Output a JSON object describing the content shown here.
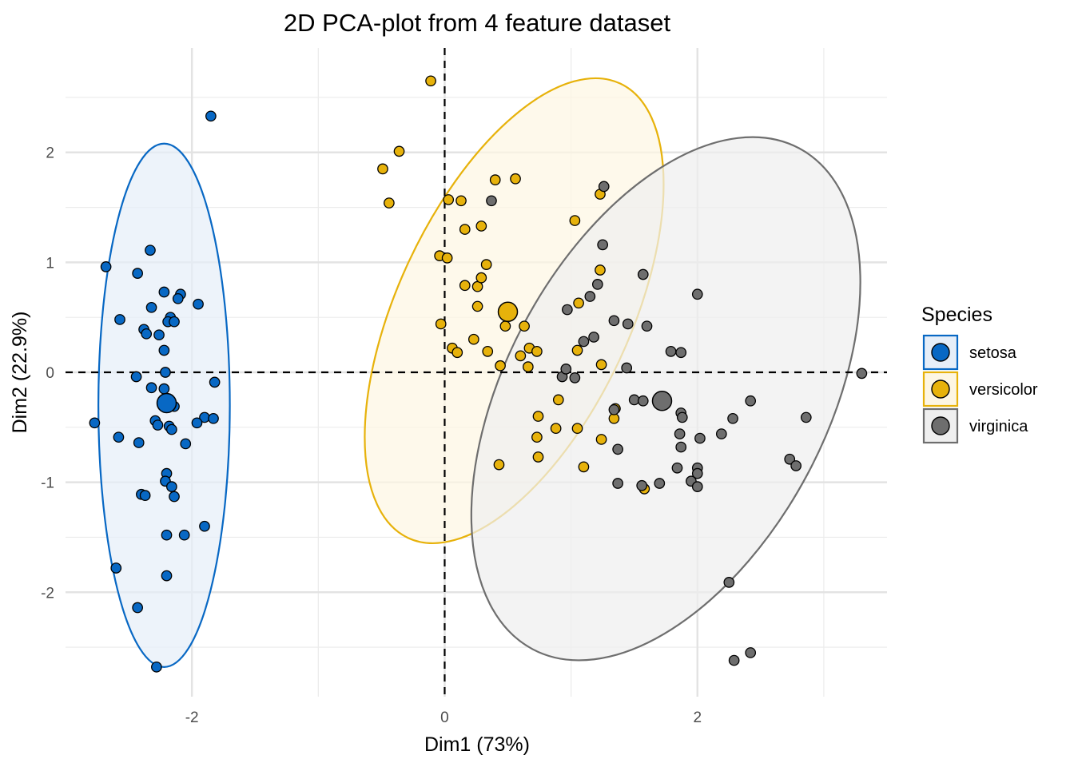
{
  "chart_data": {
    "type": "scatter",
    "title": "2D PCA-plot from 4 feature dataset",
    "xlabel": "Dim1 (73%)",
    "ylabel": "Dim2 (22.9%)",
    "xlim": [
      -3.0,
      3.5
    ],
    "ylim": [
      -2.95,
      2.95
    ],
    "x_ticks": [
      -2,
      0,
      2
    ],
    "x_tick_labels": [
      "-2",
      "0",
      "2"
    ],
    "y_ticks": [
      -2,
      -1,
      0,
      1,
      2
    ],
    "y_tick_labels": [
      "-2",
      "-1",
      "0",
      "1",
      "2"
    ],
    "grid": true,
    "reference_lines": {
      "x": 0,
      "y": 0,
      "style": "dashed"
    },
    "legend": {
      "title": "Species",
      "placement": "right"
    },
    "series": [
      {
        "name": "setosa",
        "color": "#0868c4",
        "fill": "#e6eef8",
        "centroid": [
          -2.2,
          -0.28
        ],
        "ellipse": {
          "center": [
            -2.22,
            -0.3
          ],
          "rx": 0.52,
          "ry": 2.38,
          "angle_deg": 0
        },
        "points": [
          [
            -1.85,
            2.33
          ],
          [
            -2.68,
            0.96
          ],
          [
            -2.33,
            1.11
          ],
          [
            -2.43,
            0.9
          ],
          [
            -2.22,
            0.73
          ],
          [
            -2.09,
            0.71
          ],
          [
            -2.11,
            0.67
          ],
          [
            -1.95,
            0.62
          ],
          [
            -2.32,
            0.59
          ],
          [
            -2.57,
            0.48
          ],
          [
            -2.17,
            0.5
          ],
          [
            -2.19,
            0.46
          ],
          [
            -2.14,
            0.46
          ],
          [
            -2.38,
            0.39
          ],
          [
            -2.36,
            0.35
          ],
          [
            -2.26,
            0.34
          ],
          [
            -2.22,
            0.2
          ],
          [
            -2.21,
            0.0
          ],
          [
            -2.44,
            -0.04
          ],
          [
            -1.82,
            -0.09
          ],
          [
            -2.32,
            -0.14
          ],
          [
            -2.22,
            -0.15
          ],
          [
            -2.14,
            -0.31
          ],
          [
            -2.29,
            -0.44
          ],
          [
            -2.27,
            -0.48
          ],
          [
            -2.18,
            -0.49
          ],
          [
            -2.16,
            -0.52
          ],
          [
            -1.9,
            -0.41
          ],
          [
            -1.83,
            -0.42
          ],
          [
            -1.96,
            -0.46
          ],
          [
            -2.77,
            -0.46
          ],
          [
            -2.58,
            -0.59
          ],
          [
            -2.42,
            -0.64
          ],
          [
            -2.05,
            -0.65
          ],
          [
            -2.2,
            -0.92
          ],
          [
            -2.21,
            -0.99
          ],
          [
            -2.16,
            -1.04
          ],
          [
            -2.14,
            -1.13
          ],
          [
            -2.4,
            -1.11
          ],
          [
            -2.37,
            -1.12
          ],
          [
            -1.9,
            -1.4
          ],
          [
            -2.2,
            -1.48
          ],
          [
            -2.06,
            -1.48
          ],
          [
            -2.6,
            -1.78
          ],
          [
            -2.2,
            -1.85
          ],
          [
            -2.43,
            -2.14
          ],
          [
            -2.28,
            -2.68
          ]
        ]
      },
      {
        "name": "versicolor",
        "color": "#e7b20b",
        "fill": "#fdf6e3",
        "centroid": [
          0.5,
          0.55
        ],
        "ellipse": {
          "center": [
            0.55,
            0.56
          ],
          "rx": 0.92,
          "ry": 2.28,
          "angle_deg": 25
        },
        "points": [
          [
            -0.11,
            2.65
          ],
          [
            -0.36,
            2.01
          ],
          [
            -0.49,
            1.85
          ],
          [
            -0.44,
            1.54
          ],
          [
            0.03,
            1.57
          ],
          [
            0.13,
            1.56
          ],
          [
            0.4,
            1.75
          ],
          [
            0.56,
            1.76
          ],
          [
            0.16,
            1.3
          ],
          [
            0.29,
            1.33
          ],
          [
            1.03,
            1.38
          ],
          [
            1.23,
            1.62
          ],
          [
            -0.04,
            1.06
          ],
          [
            0.02,
            1.04
          ],
          [
            0.33,
            0.98
          ],
          [
            0.16,
            0.79
          ],
          [
            0.26,
            0.78
          ],
          [
            0.29,
            0.86
          ],
          [
            0.26,
            0.6
          ],
          [
            1.23,
            0.93
          ],
          [
            1.06,
            0.63
          ],
          [
            -0.03,
            0.44
          ],
          [
            0.23,
            0.3
          ],
          [
            0.48,
            0.42
          ],
          [
            0.63,
            0.42
          ],
          [
            0.06,
            0.22
          ],
          [
            0.1,
            0.18
          ],
          [
            0.34,
            0.19
          ],
          [
            0.67,
            0.22
          ],
          [
            0.73,
            0.19
          ],
          [
            1.05,
            0.2
          ],
          [
            0.44,
            0.06
          ],
          [
            0.6,
            0.15
          ],
          [
            0.66,
            0.05
          ],
          [
            1.24,
            0.07
          ],
          [
            0.9,
            -0.25
          ],
          [
            1.35,
            -0.33
          ],
          [
            0.74,
            -0.4
          ],
          [
            1.34,
            -0.42
          ],
          [
            1.05,
            -0.51
          ],
          [
            0.88,
            -0.51
          ],
          [
            0.73,
            -0.59
          ],
          [
            1.24,
            -0.61
          ],
          [
            0.74,
            -0.77
          ],
          [
            1.1,
            -0.86
          ],
          [
            0.43,
            -0.84
          ],
          [
            1.58,
            -1.06
          ]
        ]
      },
      {
        "name": "virginica",
        "color": "#6e6e6e",
        "fill": "#efefef",
        "centroid": [
          1.72,
          -0.26
        ],
        "ellipse": {
          "center": [
            1.75,
            -0.24
          ],
          "rx": 1.27,
          "ry": 2.58,
          "angle_deg": 28
        },
        "points": [
          [
            1.26,
            1.69
          ],
          [
            0.37,
            1.56
          ],
          [
            1.25,
            1.16
          ],
          [
            1.57,
            0.89
          ],
          [
            2.0,
            0.71
          ],
          [
            1.21,
            0.8
          ],
          [
            1.15,
            0.69
          ],
          [
            0.97,
            0.57
          ],
          [
            1.34,
            0.47
          ],
          [
            1.45,
            0.44
          ],
          [
            1.6,
            0.42
          ],
          [
            1.18,
            0.32
          ],
          [
            1.1,
            0.28
          ],
          [
            1.79,
            0.19
          ],
          [
            1.87,
            0.18
          ],
          [
            1.44,
            0.04
          ],
          [
            0.93,
            -0.04
          ],
          [
            0.96,
            0.03
          ],
          [
            1.03,
            -0.05
          ],
          [
            3.3,
            -0.01
          ],
          [
            1.5,
            -0.25
          ],
          [
            1.57,
            -0.26
          ],
          [
            2.42,
            -0.26
          ],
          [
            1.87,
            -0.37
          ],
          [
            1.88,
            -0.41
          ],
          [
            2.28,
            -0.42
          ],
          [
            2.86,
            -0.41
          ],
          [
            1.34,
            -0.34
          ],
          [
            2.19,
            -0.56
          ],
          [
            1.86,
            -0.56
          ],
          [
            2.02,
            -0.6
          ],
          [
            1.87,
            -0.68
          ],
          [
            1.37,
            -0.7
          ],
          [
            1.84,
            -0.87
          ],
          [
            2.0,
            -0.87
          ],
          [
            2.0,
            -0.92
          ],
          [
            2.73,
            -0.79
          ],
          [
            2.78,
            -0.85
          ],
          [
            1.37,
            -1.01
          ],
          [
            1.7,
            -1.01
          ],
          [
            1.95,
            -0.99
          ],
          [
            2.0,
            -1.04
          ],
          [
            1.56,
            -1.03
          ],
          [
            2.25,
            -1.91
          ],
          [
            2.29,
            -2.62
          ],
          [
            2.42,
            -2.55
          ]
        ]
      }
    ]
  }
}
